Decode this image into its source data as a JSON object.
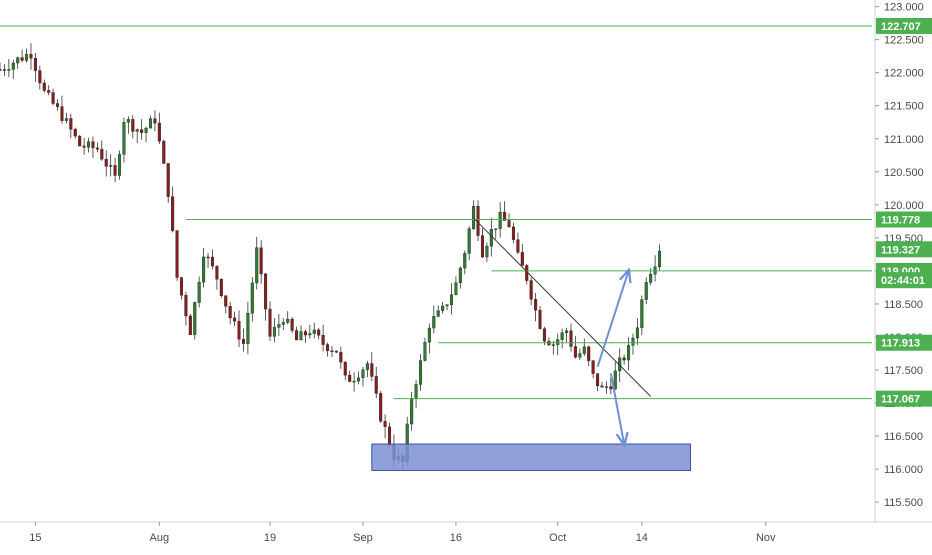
{
  "chart_data": {
    "type": "candlestick",
    "title": "",
    "ylim": [
      115.2,
      123.1
    ],
    "xlim": [
      0,
      197
    ],
    "y_ticks": [
      "123.000",
      "122.500",
      "122.000",
      "121.500",
      "121.000",
      "120.500",
      "120.000",
      "119.500",
      "119.000",
      "118.500",
      "118.000",
      "117.500",
      "117.000",
      "116.500",
      "116.000",
      "115.500"
    ],
    "y_tick_values": [
      123.0,
      122.5,
      122.0,
      121.5,
      121.0,
      120.5,
      120.0,
      119.5,
      119.0,
      118.5,
      118.0,
      117.5,
      117.0,
      116.5,
      116.0,
      115.5
    ],
    "x_ticks": [
      {
        "label": "15",
        "index": 8
      },
      {
        "label": "Aug",
        "index": 36
      },
      {
        "label": "19",
        "index": 61
      },
      {
        "label": "Sep",
        "index": 82
      },
      {
        "label": "16",
        "index": 103
      },
      {
        "label": "Oct",
        "index": 126
      },
      {
        "label": "14",
        "index": 145
      },
      {
        "label": "Nov",
        "index": 173
      }
    ],
    "levels": [
      {
        "price": 122.707,
        "label": "122.707",
        "color": "#4caf50",
        "from_index": 0
      },
      {
        "price": 119.778,
        "label": "119.778",
        "color": "#4caf50",
        "from_index": 42
      },
      {
        "price": 117.913,
        "label": "117.913",
        "color": "#4caf50",
        "from_index": 99
      },
      {
        "price": 117.067,
        "label": "117.067",
        "color": "#4caf50",
        "from_index": 89
      },
      {
        "price": 119.0,
        "label": "119.000",
        "color": "#4caf50",
        "from_index": 111
      }
    ],
    "price_labels": [
      {
        "price": 119.327,
        "label": "119.327",
        "color": "#4caf50"
      },
      {
        "price": 118.86,
        "label": "02:44:01",
        "color": "#4caf50"
      }
    ],
    "trendline": {
      "from": {
        "index": 107,
        "price": 119.8
      },
      "to": {
        "index": 147,
        "price": 117.1
      },
      "color": "#333333"
    },
    "zone": {
      "from_index": 84,
      "to_index": 156,
      "top": 116.38,
      "bottom": 115.98,
      "color": "#7c8fd2"
    },
    "arrows": [
      {
        "from": {
          "index": 135,
          "price": 117.55
        },
        "to": {
          "index": 142,
          "price": 119.0
        },
        "color": "#6f8fd6"
      },
      {
        "from": {
          "index": 138,
          "price": 117.45
        },
        "to": {
          "index": 141,
          "price": 116.38
        },
        "color": "#6f8fd6"
      }
    ],
    "candles": []
  }
}
